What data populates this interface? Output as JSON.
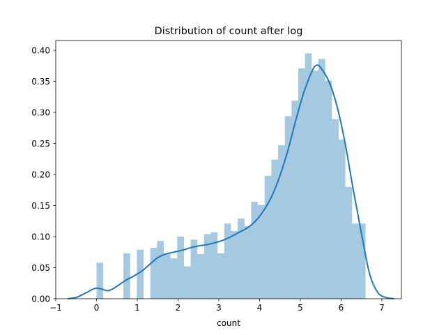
{
  "chart_data": {
    "type": "bar",
    "title": "Distribution of count after log",
    "xlabel": "count",
    "ylabel": "",
    "xlim": [
      -1.0,
      7.48
    ],
    "ylim": [
      0.0,
      0.4158
    ],
    "x_ticks": [
      -1,
      0,
      1,
      2,
      3,
      4,
      5,
      6,
      7
    ],
    "x_tick_labels": [
      "−1",
      "0",
      "1",
      "2",
      "3",
      "4",
      "5",
      "6",
      "7"
    ],
    "y_ticks": [
      0.0,
      0.05,
      0.1,
      0.15,
      0.2,
      0.25,
      0.3,
      0.35,
      0.4
    ],
    "y_tick_labels": [
      "0.00",
      "0.05",
      "0.10",
      "0.15",
      "0.20",
      "0.25",
      "0.30",
      "0.35",
      "0.40"
    ],
    "grid": false,
    "colors": {
      "bars": "#1f77b4",
      "bars_opacity": 0.4,
      "kde": "#1f77b4"
    },
    "histogram": {
      "bin_edges": [
        0.0,
        0.165,
        0.33,
        0.495,
        0.66,
        0.825,
        0.99,
        1.155,
        1.32,
        1.485,
        1.65,
        1.815,
        1.98,
        2.145,
        2.31,
        2.475,
        2.64,
        2.805,
        2.97,
        3.135,
        3.3,
        3.465,
        3.63,
        3.795,
        3.96,
        4.125,
        4.29,
        4.455,
        4.62,
        4.785,
        4.95,
        5.115,
        5.28,
        5.445,
        5.61,
        5.775,
        5.94,
        6.105,
        6.27,
        6.435,
        6.6
      ],
      "values": [
        0.058,
        0.0,
        0.0,
        0.0,
        0.073,
        0.0,
        0.079,
        0.0,
        0.082,
        0.093,
        0.073,
        0.065,
        0.1,
        0.052,
        0.095,
        0.072,
        0.104,
        0.107,
        0.073,
        0.121,
        0.109,
        0.129,
        0.117,
        0.156,
        0.151,
        0.198,
        0.224,
        0.247,
        0.294,
        0.319,
        0.371,
        0.395,
        0.367,
        0.386,
        0.351,
        0.289,
        0.256,
        0.18,
        0.121,
        0.121
      ]
    },
    "kde": {
      "x": [
        -0.7,
        -0.5,
        -0.3,
        -0.1,
        0.0,
        0.1,
        0.3,
        0.5,
        0.7,
        0.9,
        1.1,
        1.3,
        1.5,
        1.7,
        1.9,
        2.1,
        2.3,
        2.5,
        2.7,
        2.9,
        3.1,
        3.3,
        3.5,
        3.7,
        3.9,
        4.1,
        4.3,
        4.5,
        4.7,
        4.9,
        5.1,
        5.3,
        5.4,
        5.5,
        5.7,
        5.9,
        6.1,
        6.3,
        6.5,
        6.7,
        6.9,
        7.1,
        7.3
      ],
      "y": [
        0.0,
        0.002,
        0.008,
        0.015,
        0.017,
        0.016,
        0.013,
        0.02,
        0.029,
        0.036,
        0.044,
        0.055,
        0.066,
        0.072,
        0.075,
        0.078,
        0.082,
        0.085,
        0.087,
        0.09,
        0.094,
        0.1,
        0.107,
        0.114,
        0.125,
        0.142,
        0.165,
        0.198,
        0.24,
        0.29,
        0.335,
        0.368,
        0.376,
        0.372,
        0.35,
        0.31,
        0.25,
        0.175,
        0.105,
        0.04,
        0.01,
        0.002,
        0.0
      ]
    }
  }
}
